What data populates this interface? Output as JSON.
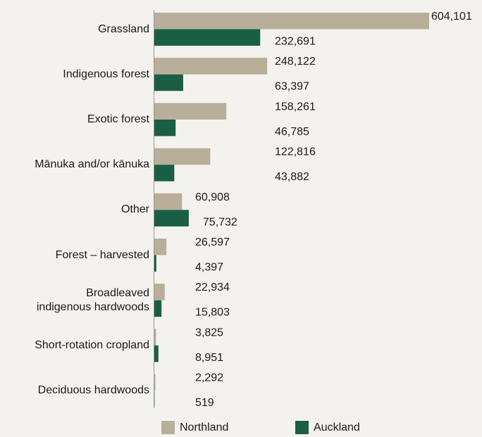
{
  "chart_data": {
    "type": "bar",
    "orientation": "horizontal",
    "categories": [
      "Grassland",
      "Indigenous forest",
      "Exotic forest",
      "Mānuka and/or kānuka",
      "Other",
      "Forest – harvested",
      "Broadleaved\nindigenous hardwoods",
      "Short-rotation cropland",
      "Deciduous hardwoods"
    ],
    "series": [
      {
        "name": "Northland",
        "color": "#b9ae9a",
        "values": [
          604101,
          248122,
          158261,
          122816,
          60908,
          26597,
          22934,
          3825,
          2292
        ],
        "value_labels": [
          "604,101",
          "248,122",
          "158,261",
          "122,816",
          "60,908",
          "26,597",
          "22,934",
          "3,825",
          "2,292"
        ]
      },
      {
        "name": "Auckland",
        "color": "#1a5e45",
        "values": [
          232691,
          63397,
          46785,
          43882,
          75732,
          4397,
          15803,
          8951,
          519
        ],
        "value_labels": [
          "232,691",
          "63,397",
          "46,785",
          "43,882",
          "75,732",
          "4,397",
          "15,803",
          "8,951",
          "519"
        ]
      }
    ],
    "legend": "bottom"
  }
}
